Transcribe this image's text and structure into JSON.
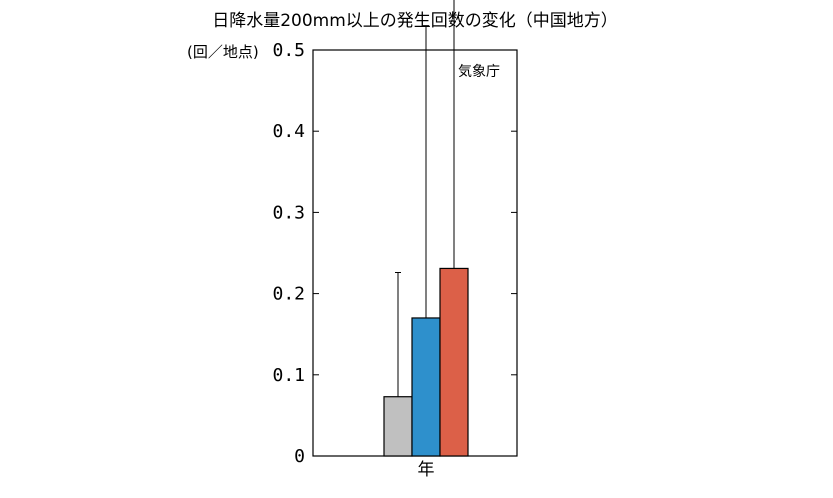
{
  "chart_data": {
    "type": "bar",
    "title": "日降水量200mm以上の発生回数の変化（中国地方）",
    "ylabel": "(回／地点)",
    "categories": [
      "年"
    ],
    "ylim": [
      0,
      0.5
    ],
    "yticks": [
      "0",
      "0.1",
      "0.2",
      "0.3",
      "0.4",
      "0.5"
    ],
    "annotation": "気象庁",
    "grid": false,
    "series": [
      {
        "values": [
          0.073
        ],
        "color": "#c0c0c0",
        "error_low": [
          0.0
        ],
        "error_high": [
          0.153
        ]
      },
      {
        "values": [
          0.17
        ],
        "color": "#2e90cc",
        "error_low": [
          0.0
        ],
        "error_high": [
          0.36
        ]
      },
      {
        "values": [
          0.231
        ],
        "color": "#dc6048",
        "error_low": [
          0.0
        ],
        "error_high": [
          0.472
        ]
      }
    ]
  }
}
